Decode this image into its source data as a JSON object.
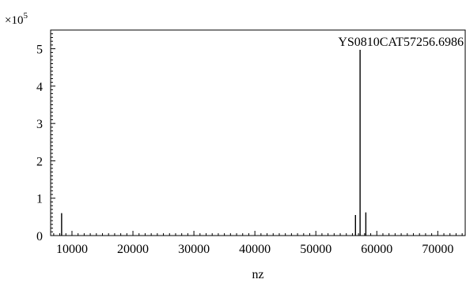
{
  "chart_data": {
    "type": "spectrum",
    "xlabel": "nz",
    "ylabel": "",
    "y_exponent_label": "×10",
    "y_exponent": "5",
    "xlim": [
      6500,
      74500
    ],
    "ylim": [
      0,
      5.5
    ],
    "x_ticks": [
      10000,
      20000,
      30000,
      40000,
      50000,
      60000,
      70000
    ],
    "x_tick_labels": [
      "10000",
      "20000",
      "30000",
      "40000",
      "50000",
      "60000",
      "70000"
    ],
    "y_ticks": [
      0,
      1,
      2,
      3,
      4,
      5
    ],
    "y_tick_labels": [
      "0",
      "1",
      "2",
      "3",
      "4",
      "5"
    ],
    "peaks": [
      {
        "x": 8300,
        "y": 0.6
      },
      {
        "x": 56500,
        "y": 0.55
      },
      {
        "x": 57256.6986,
        "y": 4.97
      },
      {
        "x": 58200,
        "y": 0.62
      }
    ],
    "annotation": {
      "text": "YS0810CAT57256.6986",
      "x": 57256.6986,
      "y": 4.97
    },
    "grid": false
  }
}
